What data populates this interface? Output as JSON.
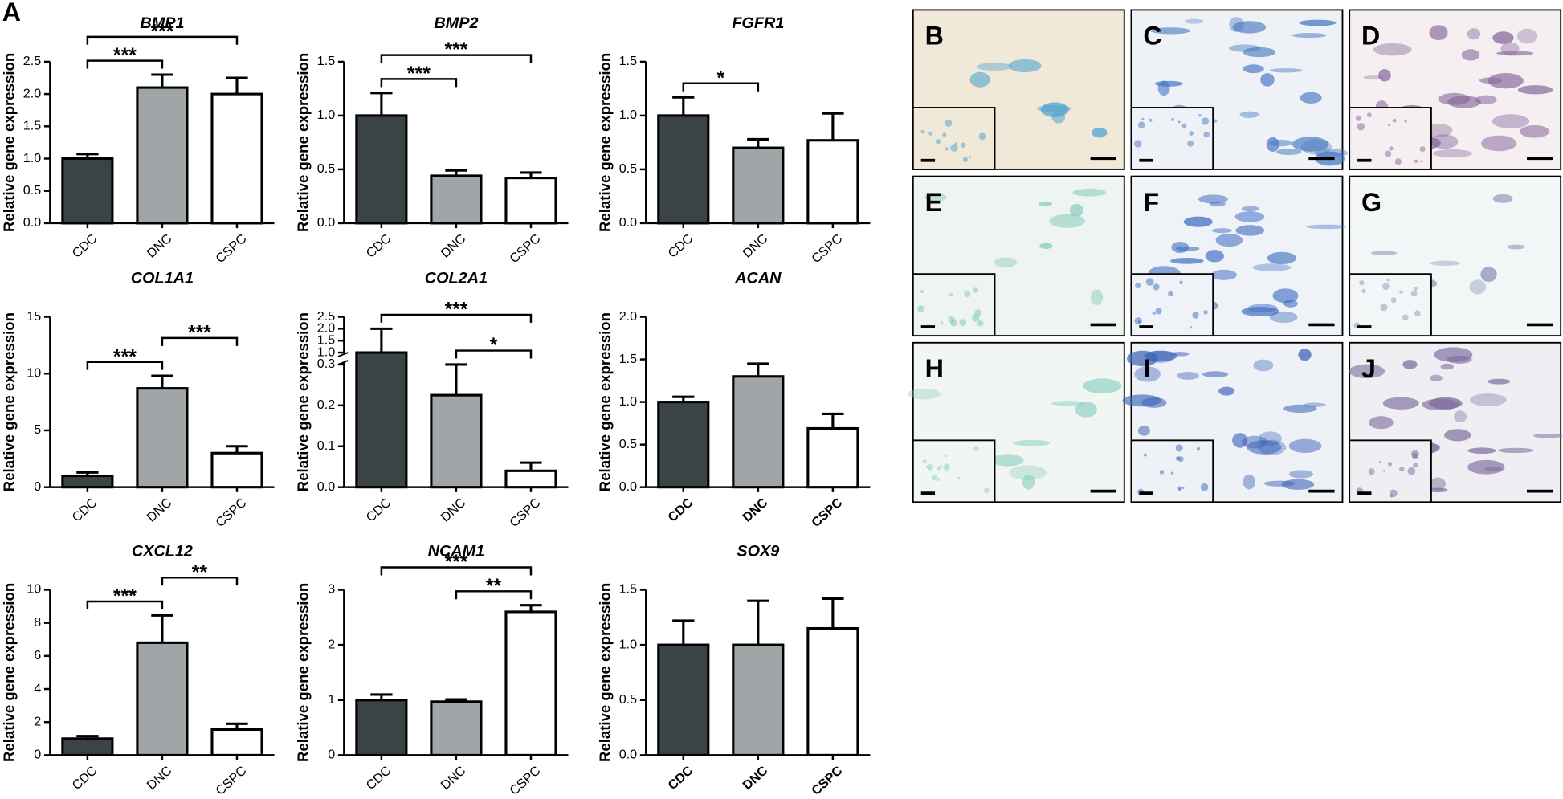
{
  "panel_label": "A",
  "chart_data": [
    {
      "type": "bar",
      "title": "BMP1",
      "y_label": "Relative gene expression",
      "categories": [
        "CDC",
        "DNC",
        "CSPC"
      ],
      "values": [
        1.0,
        2.1,
        2.0
      ],
      "errors": [
        0.07,
        0.2,
        0.25
      ],
      "colors": [
        "#3a4446",
        "#a0a6a8",
        "#ffffff"
      ],
      "ylim": [
        0,
        2.5
      ],
      "yticks": [
        {
          "value": 0,
          "label": "0.0"
        },
        0.5,
        {
          "value": 1,
          "label": "1.0"
        },
        1.5,
        {
          "value": 2,
          "label": "2.0"
        },
        2.5
      ],
      "bold_categories": false,
      "annotations": [
        {
          "between": [
            "CDC",
            "DNC"
          ],
          "label": "***"
        },
        {
          "between": [
            "CDC",
            "CSPC"
          ],
          "label": "***"
        }
      ]
    },
    {
      "type": "bar",
      "title": "BMP2",
      "y_label": "Relative gene expression",
      "categories": [
        "CDC",
        "DNC",
        "CSPC"
      ],
      "values": [
        1.0,
        0.44,
        0.42
      ],
      "errors": [
        0.21,
        0.05,
        0.05
      ],
      "colors": [
        "#3a4446",
        "#a0a6a8",
        "#ffffff"
      ],
      "ylim": [
        0,
        1.5
      ],
      "yticks": [
        {
          "value": 0,
          "label": "0.0"
        },
        0.5,
        {
          "value": 1,
          "label": "1.0"
        },
        1.5
      ],
      "bold_categories": false,
      "annotations": [
        {
          "between": [
            "CDC",
            "DNC"
          ],
          "label": "***"
        },
        {
          "between": [
            "CDC",
            "CSPC"
          ],
          "label": "***"
        }
      ]
    },
    {
      "type": "bar",
      "title": "FGFR1",
      "y_label": "Relative gene expression",
      "categories": [
        "CDC",
        "DNC",
        "CSPC"
      ],
      "values": [
        1.0,
        0.7,
        0.77
      ],
      "errors": [
        0.17,
        0.08,
        0.25
      ],
      "colors": [
        "#3a4446",
        "#a0a6a8",
        "#ffffff"
      ],
      "ylim": [
        0,
        1.5
      ],
      "yticks": [
        {
          "value": 0,
          "label": "0.0"
        },
        0.5,
        {
          "value": 1,
          "label": "1.0"
        },
        1.5
      ],
      "bold_categories": false,
      "annotations": [
        {
          "between": [
            "CDC",
            "DNC"
          ],
          "label": "*"
        }
      ]
    },
    {
      "type": "bar",
      "title": "COL1A1",
      "y_label": "Relative gene expression",
      "categories": [
        "CDC",
        "DNC",
        "CSPC"
      ],
      "values": [
        1.0,
        8.7,
        3.0
      ],
      "errors": [
        0.3,
        1.1,
        0.6
      ],
      "colors": [
        "#3a4446",
        "#a0a6a8",
        "#ffffff"
      ],
      "ylim": [
        0,
        15
      ],
      "yticks": [
        0,
        5,
        10,
        15
      ],
      "bold_categories": false,
      "annotations": [
        {
          "between": [
            "CDC",
            "DNC"
          ],
          "label": "***"
        },
        {
          "between": [
            "DNC",
            "CSPC"
          ],
          "label": "***"
        }
      ]
    },
    {
      "type": "bar",
      "title": "COL2A1",
      "y_label": "Relative gene expression",
      "categories": [
        "CDC",
        "DNC",
        "CSPC"
      ],
      "values": [
        1.0,
        0.225,
        0.04
      ],
      "errors": [
        1.0,
        0.075,
        0.02
      ],
      "colors": [
        "#3a4446",
        "#a0a6a8",
        "#ffffff"
      ],
      "ylim": [
        0,
        2.5
      ],
      "ybreak": [
        0.3,
        1.0
      ],
      "yticks": [
        {
          "value": 0,
          "label": "0.0"
        },
        0.1,
        0.2,
        0.3,
        {
          "value": 1,
          "label": "1.0"
        },
        1.5,
        {
          "value": 2,
          "label": "2.0"
        },
        2.5
      ],
      "bold_categories": false,
      "annotations": [
        {
          "between": [
            "DNC",
            "CSPC"
          ],
          "label": "*"
        },
        {
          "between": [
            "CDC",
            "CSPC"
          ],
          "label": "***"
        }
      ]
    },
    {
      "type": "bar",
      "title": "ACAN",
      "y_label": "Relative gene expression",
      "categories": [
        "CDC",
        "DNC",
        "CSPC"
      ],
      "values": [
        1.0,
        1.3,
        0.69
      ],
      "errors": [
        0.06,
        0.15,
        0.17
      ],
      "colors": [
        "#3a4446",
        "#a0a6a8",
        "#ffffff"
      ],
      "ylim": [
        0,
        2
      ],
      "yticks": [
        {
          "value": 0,
          "label": "0.0"
        },
        0.5,
        {
          "value": 1,
          "label": "1.0"
        },
        1.5,
        {
          "value": 2,
          "label": "2.0"
        }
      ],
      "bold_categories": true,
      "annotations": []
    },
    {
      "type": "bar",
      "title": "CXCL12",
      "y_label": "Relative gene expression",
      "categories": [
        "CDC",
        "DNC",
        "CSPC"
      ],
      "values": [
        1.0,
        6.8,
        1.55
      ],
      "errors": [
        0.15,
        1.65,
        0.35
      ],
      "colors": [
        "#3a4446",
        "#a0a6a8",
        "#ffffff"
      ],
      "ylim": [
        0,
        10
      ],
      "yticks": [
        0,
        2,
        4,
        6,
        8,
        10
      ],
      "bold_categories": false,
      "annotations": [
        {
          "between": [
            "CDC",
            "DNC"
          ],
          "label": "***"
        },
        {
          "between": [
            "DNC",
            "CSPC"
          ],
          "label": "**"
        }
      ]
    },
    {
      "type": "bar",
      "title": "NCAM1",
      "y_label": "Relative gene expression",
      "categories": [
        "CDC",
        "DNC",
        "CSPC"
      ],
      "values": [
        1.0,
        0.97,
        2.6
      ],
      "errors": [
        0.1,
        0.04,
        0.12
      ],
      "colors": [
        "#3a4446",
        "#a0a6a8",
        "#ffffff"
      ],
      "ylim": [
        0,
        3
      ],
      "yticks": [
        0,
        1,
        2,
        3
      ],
      "bold_categories": false,
      "annotations": [
        {
          "between": [
            "DNC",
            "CSPC"
          ],
          "label": "**"
        },
        {
          "between": [
            "CDC",
            "CSPC"
          ],
          "label": "***"
        }
      ]
    },
    {
      "type": "bar",
      "title": "SOX9",
      "y_label": "Relative gene expression",
      "categories": [
        "CDC",
        "DNC",
        "CSPC"
      ],
      "values": [
        1.0,
        1.0,
        1.15
      ],
      "errors": [
        0.22,
        0.4,
        0.27
      ],
      "colors": [
        "#3a4446",
        "#a0a6a8",
        "#ffffff"
      ],
      "ylim": [
        0,
        1.5
      ],
      "yticks": [
        {
          "value": 0,
          "label": "0.0"
        },
        0.5,
        {
          "value": 1,
          "label": "1.0"
        },
        1.5
      ],
      "bold_categories": true,
      "annotations": []
    }
  ],
  "image_panels": [
    {
      "label": "B"
    },
    {
      "label": "C"
    },
    {
      "label": "D"
    },
    {
      "label": "E"
    },
    {
      "label": "F"
    },
    {
      "label": "G"
    },
    {
      "label": "H"
    },
    {
      "label": "I"
    },
    {
      "label": "J"
    }
  ]
}
